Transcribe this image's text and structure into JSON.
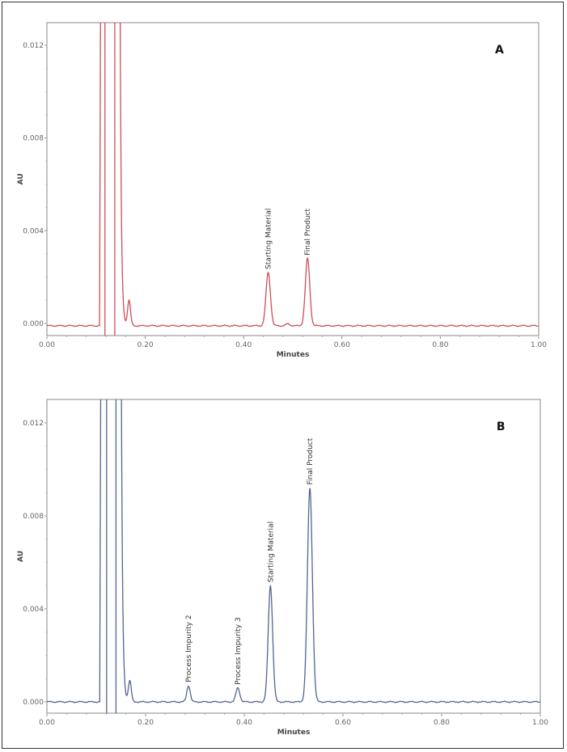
{
  "chart_data": [
    {
      "type": "line",
      "panel_label": "A",
      "xlabel": "Minutes",
      "ylabel": "AU",
      "xlim": [
        0.0,
        1.0
      ],
      "ylim": [
        -0.0005,
        0.013
      ],
      "xticks": [
        "0.00",
        "0.20",
        "0.40",
        "0.60",
        "0.80",
        "1.00"
      ],
      "yticks": [
        "0.000",
        "0.004",
        "0.008",
        "0.012"
      ],
      "color": "#cc4f55",
      "baseline": -0.0001,
      "solvent_front": {
        "rise": 0.107,
        "lines": [
          0.118,
          0.138
        ],
        "fall": 0.148
      },
      "peaks": [
        {
          "label": "",
          "rt": 0.167,
          "height": 0.0011,
          "width": 0.003
        },
        {
          "label": "Starting Material",
          "rt": 0.45,
          "height": 0.0023,
          "width": 0.0045
        },
        {
          "label": "",
          "rt": 0.49,
          "height": 8e-05,
          "width": 0.004
        },
        {
          "label": "Final Product",
          "rt": 0.53,
          "height": 0.0029,
          "width": 0.0045
        }
      ]
    },
    {
      "type": "line",
      "panel_label": "B",
      "xlabel": "Minutes",
      "ylabel": "AU",
      "xlim": [
        0.0,
        1.0
      ],
      "ylim": [
        -0.0005,
        0.013
      ],
      "xticks": [
        "0.00",
        "0.20",
        "0.40",
        "0.60",
        "0.80",
        "1.00"
      ],
      "yticks": [
        "0.000",
        "0.004",
        "0.008",
        "0.012"
      ],
      "color": "#54648e",
      "baseline": 0.0,
      "solvent_front": {
        "rise": 0.107,
        "lines": [
          0.121,
          0.14
        ],
        "fall": 0.15
      },
      "peaks": [
        {
          "label": "",
          "rt": 0.168,
          "height": 0.0009,
          "width": 0.003
        },
        {
          "label": "Process Impurity 2",
          "rt": 0.287,
          "height": 0.0007,
          "width": 0.0035
        },
        {
          "label": "Process Impurity 3",
          "rt": 0.387,
          "height": 0.0006,
          "width": 0.004
        },
        {
          "label": "Starting Material",
          "rt": 0.453,
          "height": 0.005,
          "width": 0.0045
        },
        {
          "label": "Final Product",
          "rt": 0.533,
          "height": 0.0092,
          "width": 0.005
        }
      ]
    }
  ]
}
